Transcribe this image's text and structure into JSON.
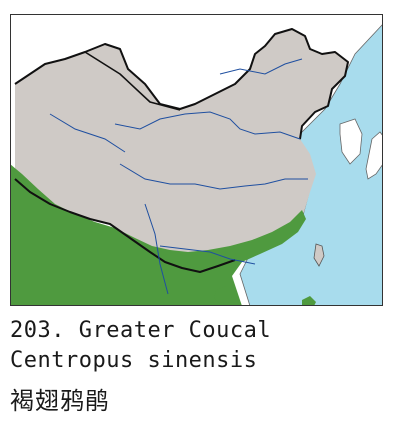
{
  "caption": {
    "title": "203. Greater Coucal",
    "latin": "Centropus sinensis",
    "chinese": "褐翅鸦鹃"
  },
  "colors": {
    "sea": "#a8dced",
    "land_other": "#ffffff",
    "china": "#cfcac6",
    "range": "#4f9a3f",
    "border": "#111111",
    "river": "#1f4fa0",
    "frame": "#333333"
  }
}
